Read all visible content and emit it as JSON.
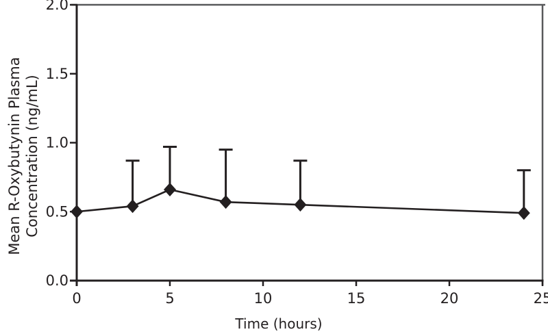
{
  "colors": {
    "ink": "#231f20",
    "frame": "#58595b",
    "background": "#ffffff"
  },
  "chart_data": {
    "type": "line",
    "title": "",
    "xlabel": "Time (hours)",
    "ylabel": "Mean R-Oxybutynin Plasma Concentration (ng/mL)",
    "ylabel_lines": [
      "Mean R-Oxybutynin Plasma",
      "Concentration (ng/mL)"
    ],
    "series": [
      {
        "name": "Mean R-oxybutynin plasma concentration",
        "x": [
          0,
          3,
          5,
          8,
          12,
          24
        ],
        "values": [
          0.5,
          0.54,
          0.66,
          0.57,
          0.55,
          0.49
        ],
        "errors_upper": [
          0,
          0.33,
          0.31,
          0.38,
          0.32,
          0.31
        ],
        "marker": "diamond",
        "color": "#231f20"
      }
    ],
    "xlim": [
      0,
      25
    ],
    "ylim": [
      0.0,
      2.0
    ],
    "x_ticks": [
      "0",
      "5",
      "10",
      "15",
      "20",
      "25"
    ],
    "y_ticks": [
      "0.0",
      "0.5",
      "1.0",
      "1.5",
      "2.0"
    ],
    "grid": false,
    "legend": "none",
    "error_bars": "upper-only"
  }
}
